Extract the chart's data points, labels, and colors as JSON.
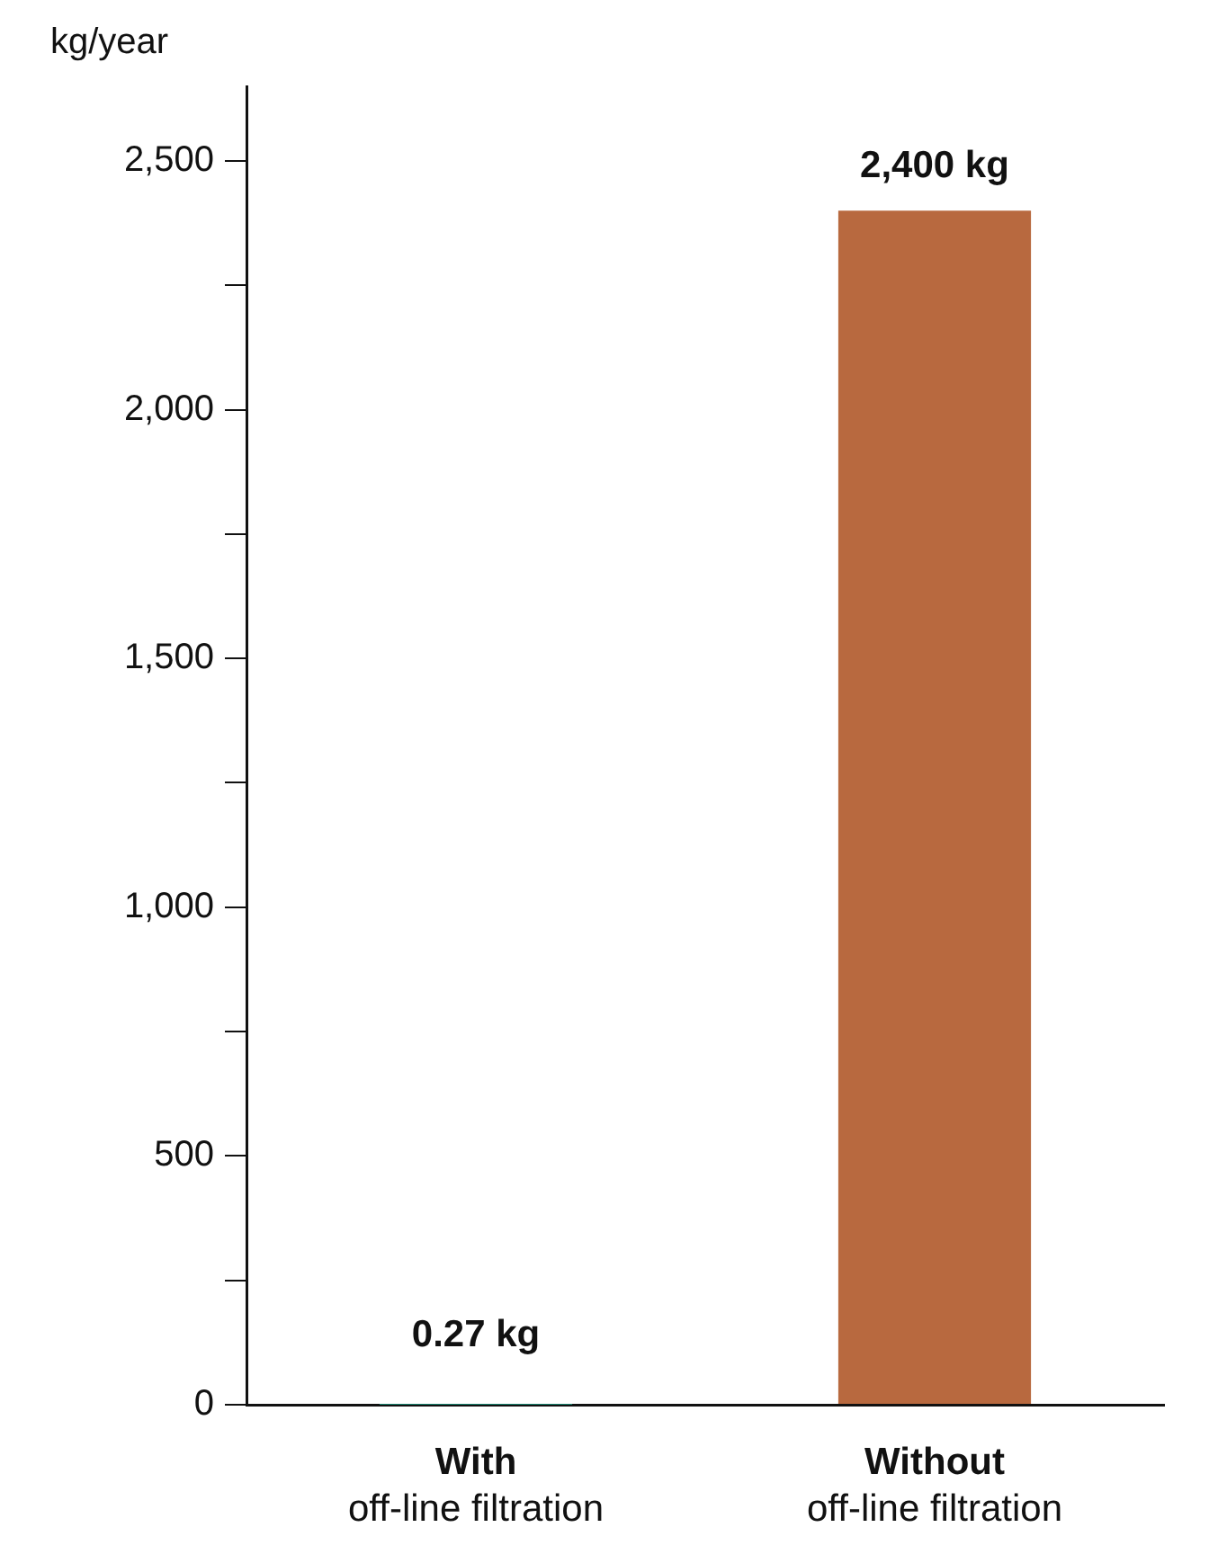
{
  "chart_data": {
    "type": "bar",
    "ylabel": "kg/year",
    "categories": [
      "With\noff-line filtration",
      "Without\noff-line filtration"
    ],
    "values": [
      0.27,
      2400
    ],
    "colors": [
      "#1ba88c",
      "#b8693f"
    ],
    "value_labels": [
      "0.27 kg",
      "2,400 kg"
    ],
    "ylim": [
      0,
      2650
    ],
    "yticks": [
      0,
      {
        "value": 250,
        "label": null
      },
      500,
      {
        "value": 750,
        "label": null
      },
      {
        "value": 1000,
        "label": "1,000"
      },
      {
        "value": 1250,
        "label": null
      },
      {
        "value": 1500,
        "label": "1,500"
      },
      {
        "value": 1750,
        "label": null
      },
      {
        "value": 2000,
        "label": "2,000"
      },
      {
        "value": 2250,
        "label": null
      },
      {
        "value": 2500,
        "label": "2,500"
      }
    ],
    "grid": false,
    "legend": false
  }
}
